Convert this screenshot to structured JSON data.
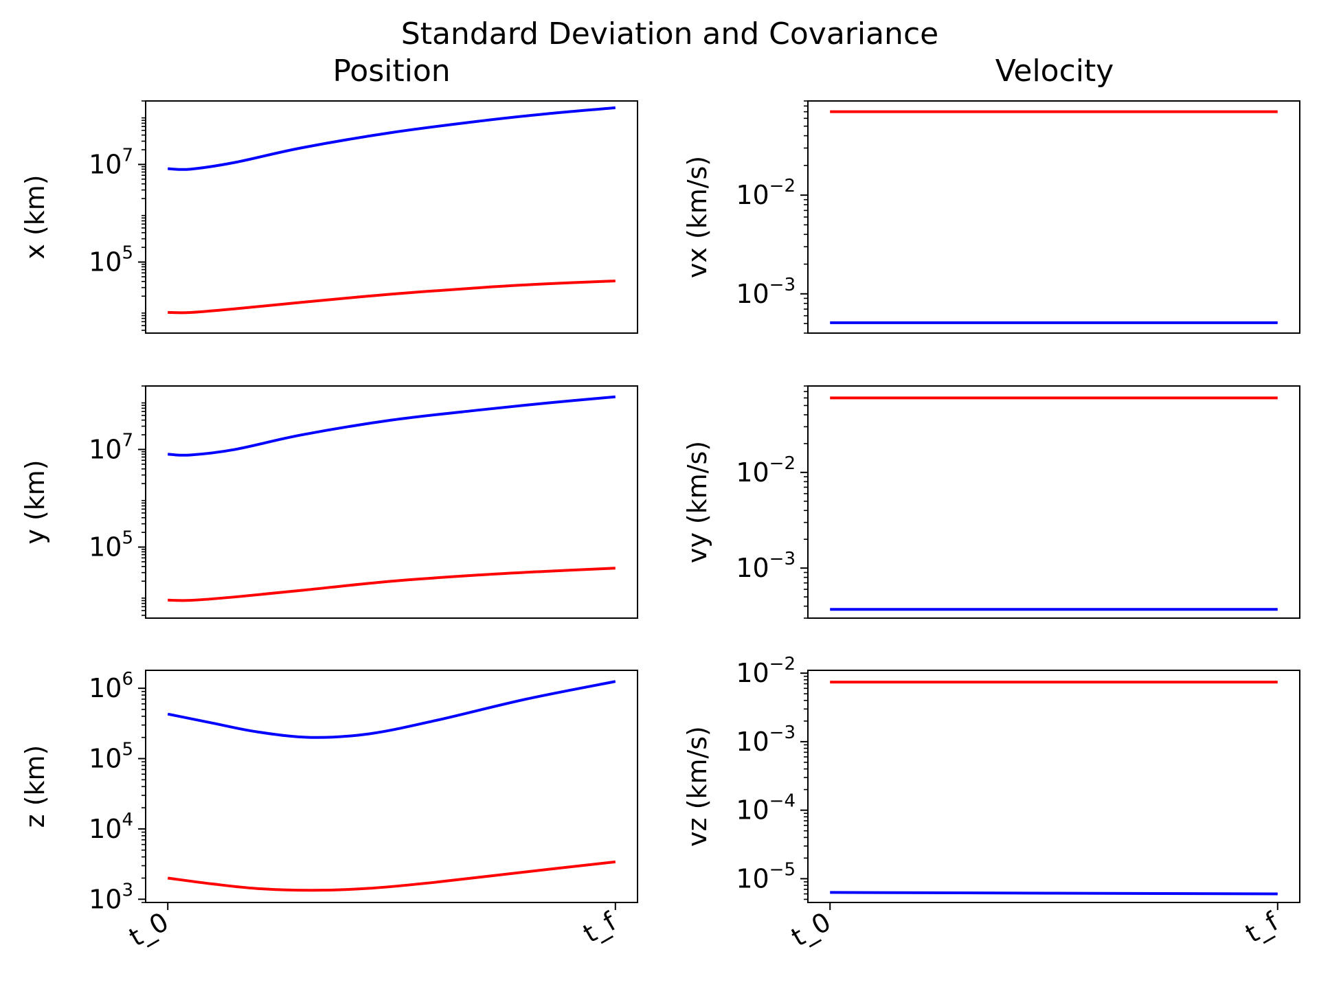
{
  "title": "Standard Deviation and Covariance",
  "columns": {
    "left": "Position",
    "right": "Velocity"
  },
  "colors": {
    "red": "#ff0000",
    "blue": "#0000ff"
  },
  "xticks": [
    "t_0",
    "t_f"
  ],
  "chart_data": [
    {
      "id": "x",
      "type": "line",
      "ylabel": "x (km)",
      "yscale": "log",
      "ylim": [
        3500,
        200000000
      ],
      "yticks_major": [
        5,
        7
      ],
      "x": [
        0,
        0.05,
        0.15,
        0.3,
        0.5,
        0.7,
        0.85,
        1.0
      ],
      "series": [
        {
          "color": "red",
          "values": [
            9300,
            9250,
            11000,
            15000,
            22000,
            30000,
            36000,
            41000
          ]
        },
        {
          "color": "blue",
          "values": [
            8200000,
            8000000,
            11000000,
            22000000,
            45000000,
            78000000,
            110000000,
            145000000
          ]
        }
      ]
    },
    {
      "id": "vx",
      "type": "line",
      "ylabel": "vx (km/s)",
      "yscale": "log",
      "ylim": [
        0.0004,
        0.09
      ],
      "yticks_major": [
        -3,
        -2
      ],
      "x": [
        0,
        1
      ],
      "series": [
        {
          "color": "red",
          "values": [
            0.07,
            0.07
          ]
        },
        {
          "color": "blue",
          "values": [
            0.00051,
            0.00051
          ]
        }
      ]
    },
    {
      "id": "y",
      "type": "line",
      "ylabel": "y (km)",
      "yscale": "log",
      "ylim": [
        3500,
        200000000
      ],
      "yticks_major": [
        5,
        7
      ],
      "x": [
        0,
        0.05,
        0.15,
        0.3,
        0.5,
        0.7,
        0.85,
        1.0
      ],
      "series": [
        {
          "color": "red",
          "values": [
            8200,
            8100,
            9500,
            13000,
            20000,
            27000,
            32000,
            37000
          ]
        },
        {
          "color": "blue",
          "values": [
            8000000,
            7700000,
            10000000,
            20000000,
            40000000,
            65000000,
            90000000,
            120000000
          ]
        }
      ]
    },
    {
      "id": "vy",
      "type": "line",
      "ylabel": "vy (km/s)",
      "yscale": "log",
      "ylim": [
        0.0003,
        0.08
      ],
      "yticks_major": [
        -3,
        -2
      ],
      "x": [
        0,
        1
      ],
      "series": [
        {
          "color": "red",
          "values": [
            0.06,
            0.06
          ]
        },
        {
          "color": "blue",
          "values": [
            0.00037,
            0.00037
          ]
        }
      ]
    },
    {
      "id": "z",
      "type": "line",
      "ylabel": "z (km)",
      "yscale": "log",
      "ylim": [
        900,
        1800000
      ],
      "yticks_major": [
        3,
        4,
        5,
        6
      ],
      "x": [
        0,
        0.1,
        0.2,
        0.32,
        0.45,
        0.6,
        0.8,
        1.0
      ],
      "series": [
        {
          "color": "red",
          "values": [
            2000,
            1650,
            1420,
            1340,
            1430,
            1750,
            2450,
            3400
          ]
        },
        {
          "color": "blue",
          "values": [
            430000,
            320000,
            240000,
            200000,
            225000,
            350000,
            700000,
            1250000
          ]
        }
      ]
    },
    {
      "id": "vz",
      "type": "line",
      "ylabel": "vz (km/s)",
      "yscale": "log",
      "ylim": [
        4.5e-06,
        0.011
      ],
      "yticks_major": [
        -5,
        -4,
        -3,
        -2
      ],
      "x": [
        0,
        1
      ],
      "series": [
        {
          "color": "red",
          "values": [
            0.0074,
            0.0074
          ]
        },
        {
          "color": "blue",
          "values": [
            6.3e-06,
            6e-06
          ]
        }
      ]
    }
  ]
}
